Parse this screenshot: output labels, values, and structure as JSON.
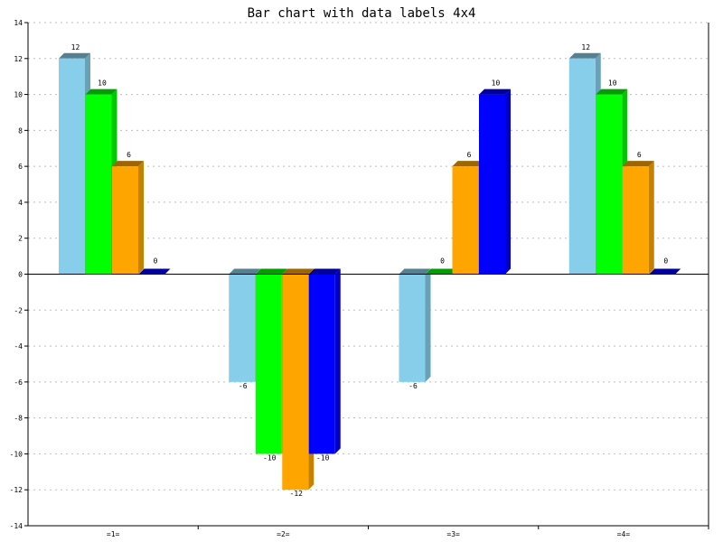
{
  "chart_data": {
    "type": "bar",
    "title": "Bar chart with data labels 4x4",
    "categories": [
      "=1=",
      "=2=",
      "=3=",
      "=4="
    ],
    "series": [
      {
        "values": [
          12,
          -6,
          -6,
          12
        ],
        "color": "#87ceeb"
      },
      {
        "values": [
          10,
          -10,
          0,
          10
        ],
        "color": "#00ff00"
      },
      {
        "values": [
          6,
          -12,
          6,
          6
        ],
        "color": "#ffa500"
      },
      {
        "values": [
          0,
          -10,
          10,
          0
        ],
        "color": "#0000ff"
      }
    ],
    "ylim": [
      -14,
      14
    ],
    "yticks": [
      -14,
      -12,
      -10,
      -8,
      -6,
      -4,
      -2,
      0,
      2,
      4,
      6,
      8,
      10,
      12,
      14
    ],
    "grid": true,
    "style": "3d"
  }
}
